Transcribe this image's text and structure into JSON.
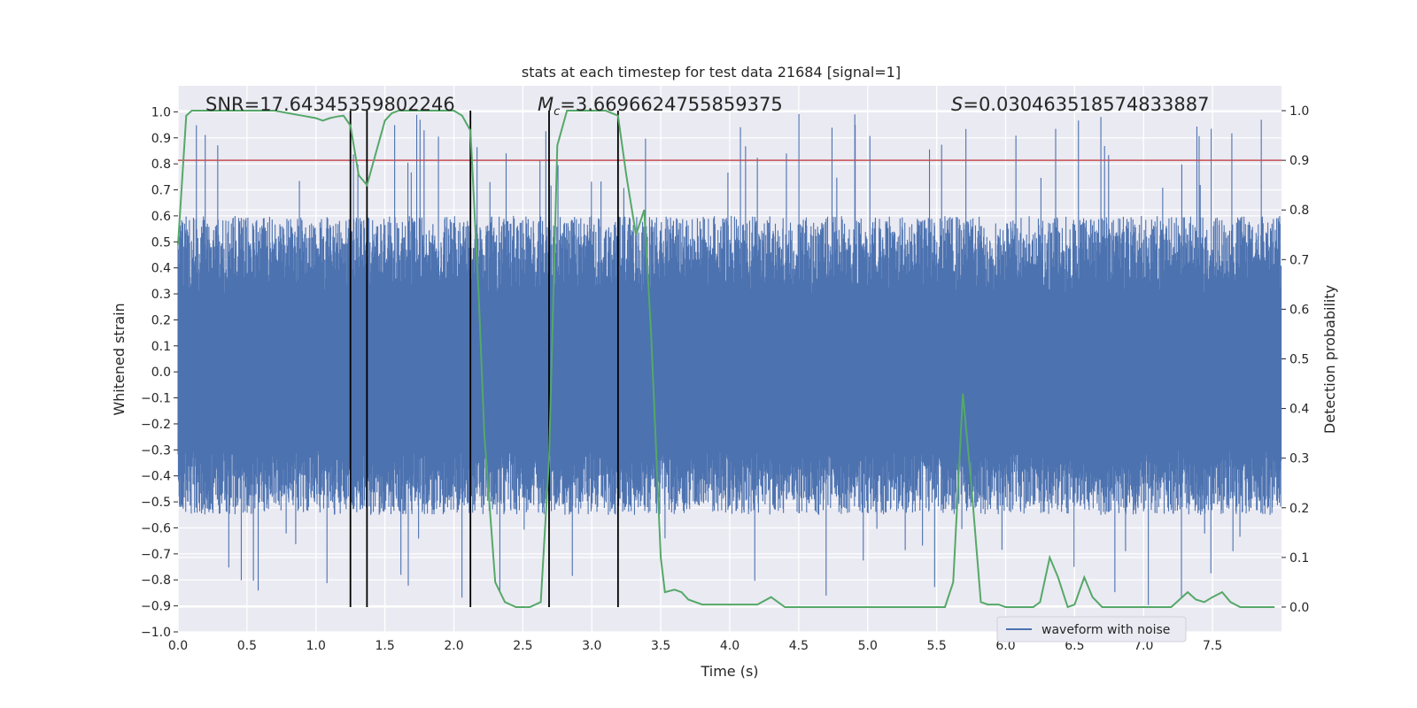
{
  "chart_data": {
    "type": "line",
    "title": "stats at each timestep for test data 21684 [signal=1]",
    "xlabel": "Time (s)",
    "ylabel_left": "Whitened strain",
    "ylabel_right": "Detection probability",
    "xlim": [
      0,
      8.0
    ],
    "ylim_left": [
      -1.0,
      1.1
    ],
    "ylim_right": [
      -0.05,
      1.05
    ],
    "x_ticks": [
      "0.0",
      "0.5",
      "1.0",
      "1.5",
      "2.0",
      "2.5",
      "3.0",
      "3.5",
      "4.0",
      "4.5",
      "5.0",
      "5.5",
      "6.0",
      "6.5",
      "7.0",
      "7.5"
    ],
    "y_left_ticks": [
      "-1.0",
      "-0.9",
      "-0.8",
      "-0.7",
      "-0.6",
      "-0.5",
      "-0.4",
      "-0.3",
      "-0.2",
      "-0.1",
      "0.0",
      "0.1",
      "0.2",
      "0.3",
      "0.4",
      "0.5",
      "0.6",
      "0.7",
      "0.8",
      "0.9",
      "1.0"
    ],
    "y_right_ticks": [
      "0.0",
      "0.1",
      "0.2",
      "0.3",
      "0.4",
      "0.5",
      "0.6",
      "0.7",
      "0.8",
      "0.9",
      "1.0"
    ],
    "grid": true,
    "annotations": {
      "snr": "SNR=17.64345359802246",
      "mc": "=3.6696624755859375",
      "s": "=0.030463518574833887"
    },
    "legend": {
      "label": "waveform with noise",
      "placement": "lower-right"
    },
    "threshold_right": 0.9,
    "vertical_markers_x": [
      1.25,
      1.37,
      2.12,
      2.69,
      3.19
    ],
    "series": [
      {
        "name": "waveform with noise",
        "axis": "left",
        "kind": "noise",
        "duration": 8.0,
        "envelope_typical": [
          -0.55,
          0.6
        ],
        "extreme_range": [
          -0.9,
          1.0
        ]
      },
      {
        "axis": "right",
        "x": [
          0.0,
          0.06,
          0.1,
          0.2,
          0.3,
          0.4,
          0.5,
          0.6,
          0.7,
          0.8,
          0.9,
          1.0,
          1.05,
          1.1,
          1.15,
          1.2,
          1.25,
          1.31,
          1.37,
          1.43,
          1.5,
          1.55,
          1.6,
          1.7,
          1.8,
          1.9,
          2.0,
          2.06,
          2.12,
          2.18,
          2.22,
          2.3,
          2.37,
          2.45,
          2.5,
          2.55,
          2.63,
          2.69,
          2.75,
          2.82,
          2.9,
          3.0,
          3.1,
          3.19,
          3.25,
          3.32,
          3.38,
          3.43,
          3.5,
          3.53,
          3.6,
          3.65,
          3.7,
          3.8,
          3.9,
          4.0,
          4.1,
          4.2,
          4.3,
          4.4,
          4.5,
          5.0,
          5.5,
          5.56,
          5.62,
          5.69,
          5.75,
          5.82,
          5.87,
          5.95,
          6.0,
          6.1,
          6.15,
          6.2,
          6.25,
          6.32,
          6.38,
          6.45,
          6.5,
          6.57,
          6.63,
          6.7,
          6.8,
          7.0,
          7.2,
          7.32,
          7.38,
          7.44,
          7.5,
          7.57,
          7.63,
          7.7,
          7.8,
          7.95
        ],
        "y": [
          0.73,
          0.99,
          1.0,
          1.0,
          1.0,
          1.0,
          1.0,
          1.0,
          1.0,
          0.995,
          0.99,
          0.985,
          0.98,
          0.985,
          0.988,
          0.99,
          0.97,
          0.87,
          0.85,
          0.91,
          0.98,
          0.995,
          1.0,
          1.0,
          1.0,
          1.0,
          1.0,
          0.99,
          0.96,
          0.63,
          0.35,
          0.05,
          0.01,
          0.0,
          0.0,
          0.0,
          0.01,
          0.3,
          0.93,
          1.0,
          1.0,
          1.0,
          1.0,
          0.99,
          0.87,
          0.75,
          0.8,
          0.55,
          0.1,
          0.03,
          0.035,
          0.03,
          0.015,
          0.005,
          0.005,
          0.005,
          0.005,
          0.005,
          0.02,
          0.0,
          0.0,
          0.0,
          0.0,
          0.0,
          0.05,
          0.43,
          0.25,
          0.01,
          0.005,
          0.005,
          0.0,
          0.0,
          0.0,
          0.0,
          0.01,
          0.1,
          0.06,
          0.0,
          0.005,
          0.06,
          0.02,
          0.0,
          0.0,
          0.0,
          0.0,
          0.03,
          0.015,
          0.01,
          0.02,
          0.03,
          0.01,
          0.0,
          0.0,
          0.0
        ]
      }
    ]
  }
}
